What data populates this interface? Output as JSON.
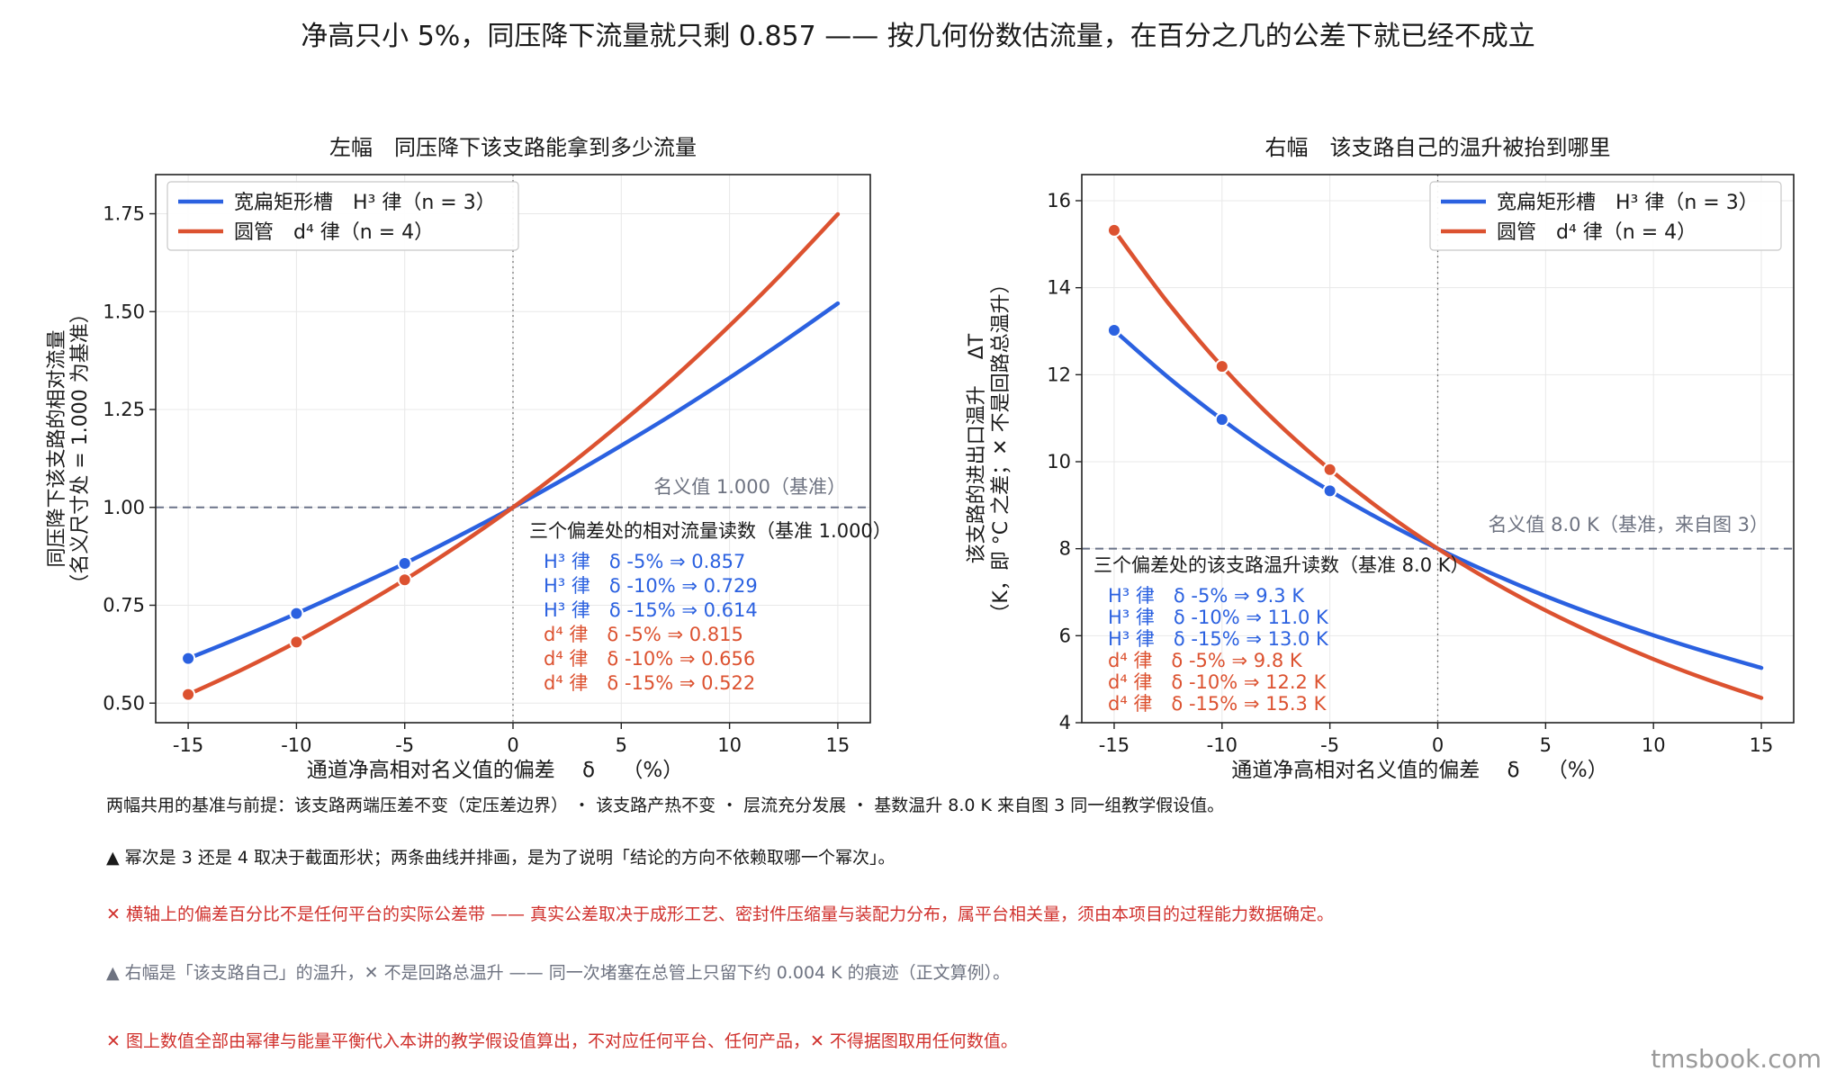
{
  "figure": {
    "suptitle": "净高只小 5%，同压降下流量就只剩 0.857 —— 按几何份数估流量，在百分之几的公差下就已经不成立",
    "watermark": "tmsbook.com",
    "notes": {
      "basis": "两幅共用的基准与前提：该支路两端压差不变（定压差边界） ・ 该支路产热不变 ・ 层流充分发展 ・ 基数温升 8.0 K 来自图 3 同一组教学假设值。",
      "power": "▲ 幂次是 3 还是 4 取决于截面形状；两条曲线并排画，是为了说明「结论的方向不依赖取哪一个幂次」。",
      "tolerance": "✕ 横轴上的偏差百分比不是任何平台的实际公差带 —— 真实公差取决于成形工艺、密封件压缩量与装配力分布，属平台相关量，须由本项目的过程能力数据确定。",
      "local": "▲ 右幅是「该支路自己」的温升，✕ 不是回路总温升 —— 同一次堵塞在总管上只留下约 0.004 K 的痕迹（正文算例）。",
      "data": "✕ 图上数值全部由幂律与能量平衡代入本讲的教学假设值算出，不对应任何平台、任何产品，✕ 不得据图取用任何数值。"
    },
    "colors": {
      "h3": "#2b61e0",
      "d4": "#dc5230",
      "reference": "#6b7389"
    }
  },
  "chart_data": [
    {
      "type": "line",
      "title": "左幅　同压降下该支路能拿到多少流量",
      "xlabel": "通道净高相对名义值的偏差　 δ　 （%）",
      "ylabel": "同压降下该支路的相对流量（名义尺寸处 = 1.000 为基准）",
      "ylabel_lines": [
        "同压降下该支路的相对流量",
        "（名义尺寸处 = 1.000 为基准）"
      ],
      "xlim": [
        -16.5,
        16.5
      ],
      "ylim": [
        0.45,
        1.85
      ],
      "xticks": [
        -15,
        -10,
        -5,
        0,
        5,
        10,
        15
      ],
      "yticks": [
        0.5,
        0.75,
        1.0,
        1.25,
        1.5,
        1.75
      ],
      "ytick_labels": [
        "0.50",
        "0.75",
        "1.00",
        "1.25",
        "1.50",
        "1.75"
      ],
      "grid": true,
      "legend": "top-left",
      "x": [
        -15,
        -12.5,
        -10,
        -7.5,
        -5,
        -2.5,
        0,
        2.5,
        5,
        7.5,
        10,
        12.5,
        15
      ],
      "series": [
        {
          "name": "宽扁矩形槽　H³ 律（n = 3）",
          "key": "h3",
          "values": [
            0.614,
            0.67,
            0.729,
            0.792,
            0.857,
            0.927,
            1.0,
            1.077,
            1.158,
            1.242,
            1.331,
            1.424,
            1.521
          ]
        },
        {
          "name": "圆管　d⁴ 律（n = 4）",
          "key": "d4",
          "values": [
            0.522,
            0.586,
            0.656,
            0.733,
            0.815,
            0.904,
            1.0,
            1.104,
            1.216,
            1.335,
            1.464,
            1.602,
            1.749
          ]
        }
      ],
      "markers": [
        {
          "series": "h3",
          "x": -15,
          "y": 0.614
        },
        {
          "series": "h3",
          "x": -10,
          "y": 0.729
        },
        {
          "series": "h3",
          "x": -5,
          "y": 0.857
        },
        {
          "series": "d4",
          "x": -15,
          "y": 0.522
        },
        {
          "series": "d4",
          "x": -10,
          "y": 0.656
        },
        {
          "series": "d4",
          "x": -5,
          "y": 0.815
        }
      ],
      "reference_line": {
        "y": 1.0,
        "label": "名义值 1.000（基准）"
      },
      "readout": {
        "title": "三个偏差处的相对流量读数（基准 1.000）",
        "lines": [
          {
            "series": "h3",
            "text": "H³ 律　δ -5% ⇒ 0.857"
          },
          {
            "series": "h3",
            "text": "H³ 律　δ -10% ⇒ 0.729"
          },
          {
            "series": "h3",
            "text": "H³ 律　δ -15% ⇒ 0.614"
          },
          {
            "series": "d4",
            "text": "d⁴ 律　δ -5% ⇒ 0.815"
          },
          {
            "series": "d4",
            "text": "d⁴ 律　δ -10% ⇒ 0.656"
          },
          {
            "series": "d4",
            "text": "d⁴ 律　δ -15% ⇒ 0.522"
          }
        ]
      }
    },
    {
      "type": "line",
      "title": "右幅　该支路自己的温升被抬到哪里",
      "xlabel": "通道净高相对名义值的偏差　 δ　 （%）",
      "ylabel": "该支路的进出口温升　ΔT（K，即 °C 之差；✕ 不是回路总温升）",
      "ylabel_lines": [
        "该支路的进出口温升　 ΔT",
        "（K，即 °C 之差；✕ 不是回路总温升）"
      ],
      "xlim": [
        -16.5,
        16.5
      ],
      "ylim": [
        4,
        16.6
      ],
      "xticks": [
        -15,
        -10,
        -5,
        0,
        5,
        10,
        15
      ],
      "yticks": [
        4,
        6,
        8,
        10,
        12,
        14,
        16
      ],
      "ytick_labels": [
        "4",
        "6",
        "8",
        "10",
        "12",
        "14",
        "16"
      ],
      "grid": true,
      "legend": "top-right",
      "x": [
        -15,
        -12.5,
        -10,
        -7.5,
        -5,
        -2.5,
        0,
        2.5,
        5,
        7.5,
        10,
        12.5,
        15
      ],
      "series": [
        {
          "name": "宽扁矩形槽　H³ 律（n = 3）",
          "key": "h3",
          "values": [
            13.02,
            11.94,
            10.97,
            10.1,
            9.33,
            8.63,
            8.0,
            7.43,
            6.91,
            6.44,
            6.01,
            5.62,
            5.26
          ]
        },
        {
          "name": "圆管　d⁴ 律（n = 4）",
          "key": "d4",
          "values": [
            15.32,
            13.65,
            12.19,
            10.92,
            9.82,
            8.85,
            8.0,
            7.25,
            6.58,
            5.99,
            5.46,
            4.99,
            4.57
          ]
        }
      ],
      "markers": [
        {
          "series": "h3",
          "x": -15,
          "y": 13.02
        },
        {
          "series": "h3",
          "x": -10,
          "y": 10.97
        },
        {
          "series": "h3",
          "x": -5,
          "y": 9.33
        },
        {
          "series": "d4",
          "x": -15,
          "y": 15.32
        },
        {
          "series": "d4",
          "x": -10,
          "y": 12.19
        },
        {
          "series": "d4",
          "x": -5,
          "y": 9.82
        }
      ],
      "reference_line": {
        "y": 8.0,
        "label": "名义值 8.0 K（基准，来自图 3）"
      },
      "readout": {
        "title": "三个偏差处的该支路温升读数（基准 8.0 K）",
        "lines": [
          {
            "series": "h3",
            "text": "H³ 律　δ -5% ⇒ 9.3 K"
          },
          {
            "series": "h3",
            "text": "H³ 律　δ -10% ⇒ 11.0 K"
          },
          {
            "series": "h3",
            "text": "H³ 律　δ -15% ⇒ 13.0 K"
          },
          {
            "series": "d4",
            "text": "d⁴ 律　δ -5% ⇒ 9.8 K"
          },
          {
            "series": "d4",
            "text": "d⁴ 律　δ -10% ⇒ 12.2 K"
          },
          {
            "series": "d4",
            "text": "d⁴ 律　δ -15% ⇒ 15.3 K"
          }
        ]
      }
    }
  ]
}
